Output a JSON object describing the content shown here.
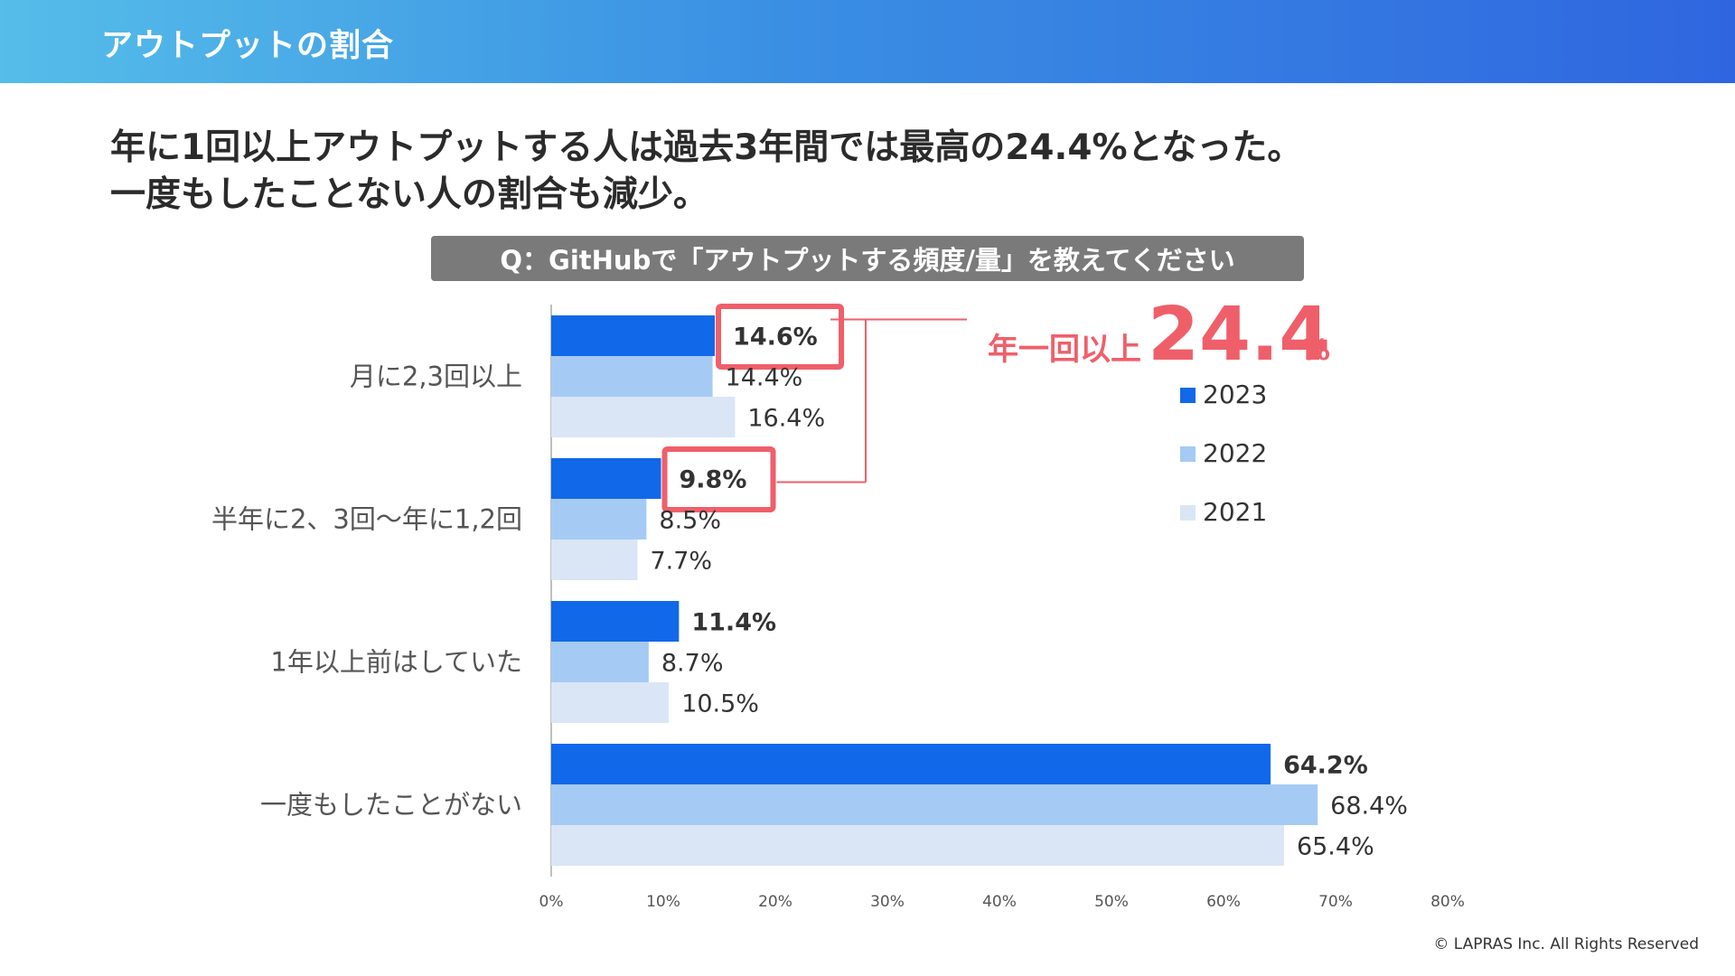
{
  "header": {
    "title": "アウトプットの割合"
  },
  "headline": {
    "line1": "年に1回以上アウトプットする人は過去3年間では最高の24.4%となった。",
    "line2": "一度もしたことない人の割合も減少。"
  },
  "question": "Q：GitHubで「アウトプットする頻度/量」を教えてください",
  "callout": {
    "label": "年一回以上",
    "value": "24.4",
    "unit": "%"
  },
  "colors": {
    "s2023": "#1168e8",
    "s2022": "#a5cbf5",
    "s2021": "#dae6f5",
    "highlight": "#ef5f6a",
    "text": "#333333",
    "axis": "#bfbfbf"
  },
  "chart_data": {
    "type": "bar",
    "orientation": "horizontal",
    "categories": [
      "月に2,3回以上",
      "半年に2、3回〜年に1,2回",
      "1年以上前はしていた",
      "一度もしたことがない"
    ],
    "series": [
      {
        "name": "2023",
        "values": [
          14.6,
          9.8,
          11.4,
          64.2
        ]
      },
      {
        "name": "2022",
        "values": [
          14.4,
          8.5,
          8.7,
          68.4
        ]
      },
      {
        "name": "2021",
        "values": [
          16.4,
          7.7,
          10.5,
          65.4
        ]
      }
    ],
    "value_labels": [
      [
        "14.6%",
        "9.8%",
        "11.4%",
        "64.2%"
      ],
      [
        "14.4%",
        "8.5%",
        "8.7%",
        "68.4%"
      ],
      [
        "16.4%",
        "7.7%",
        "10.5%",
        "65.4%"
      ]
    ],
    "xlim": [
      0,
      80
    ],
    "xticks": [
      0,
      10,
      20,
      30,
      40,
      50,
      60,
      70,
      80
    ],
    "xtick_labels": [
      "0%",
      "10%",
      "20%",
      "30%",
      "40%",
      "50%",
      "60%",
      "70%",
      "80%"
    ],
    "legend": {
      "position": "right",
      "entries": [
        "2023",
        "2022",
        "2021"
      ]
    },
    "highlighted": [
      [
        0,
        0
      ],
      [
        0,
        1
      ]
    ],
    "grid": false
  },
  "footer": {
    "copyright": "© LAPRAS Inc. All Rights Reserved"
  }
}
